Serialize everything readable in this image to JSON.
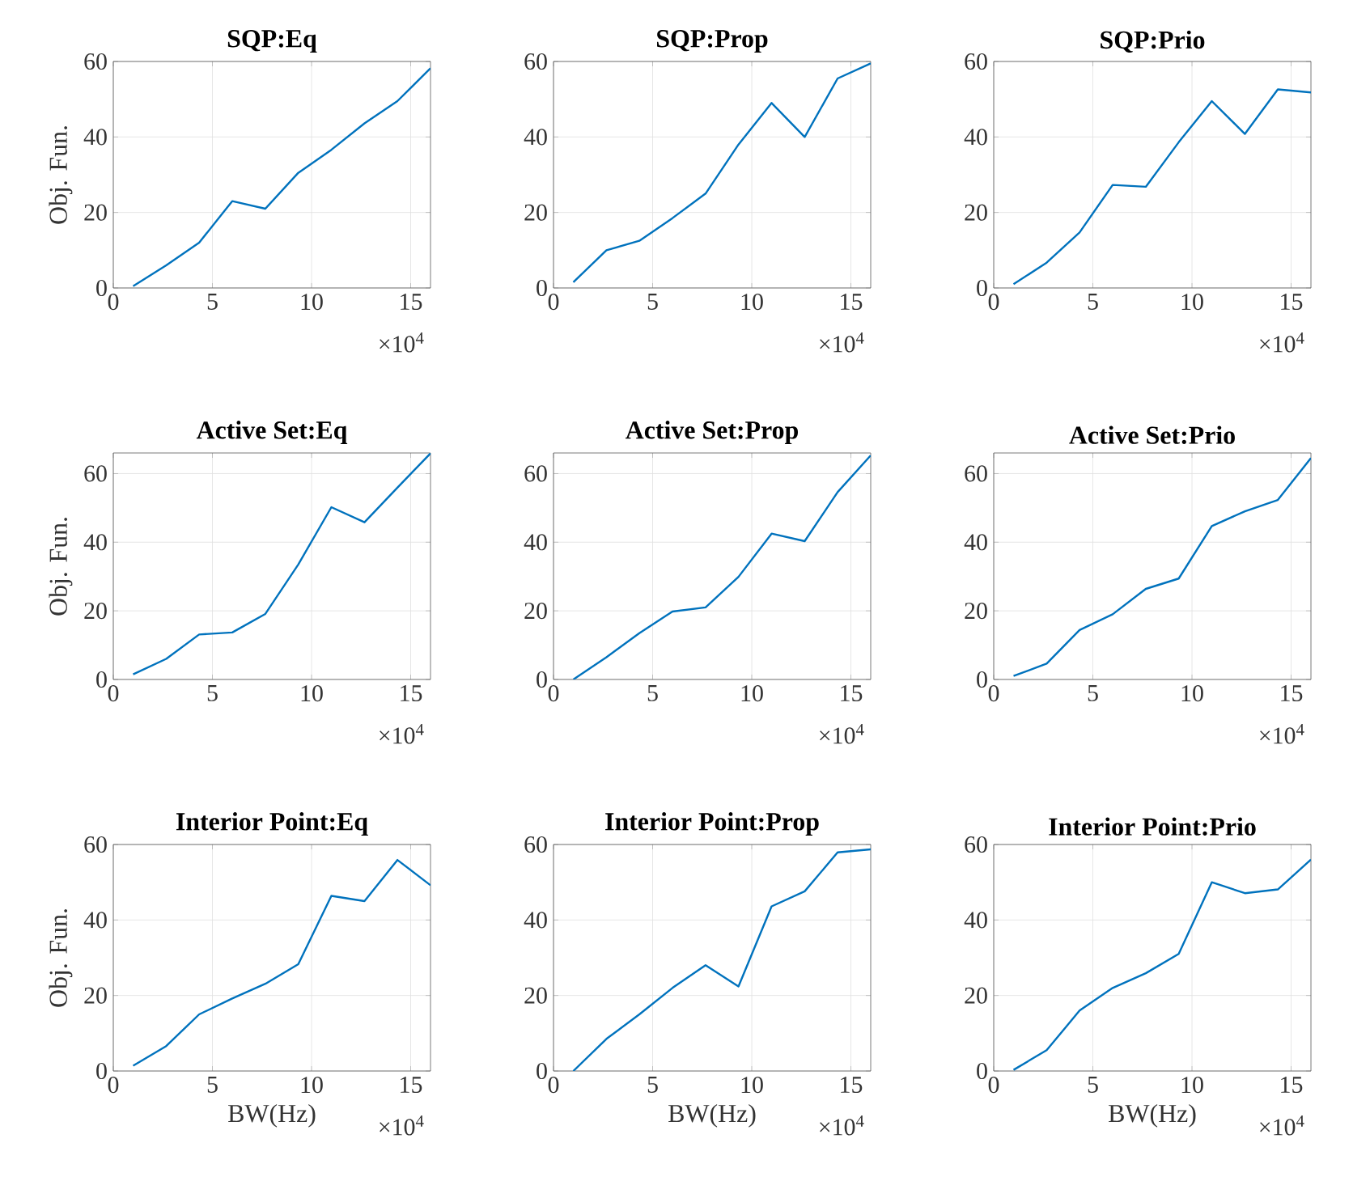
{
  "chart_data": [
    {
      "type": "line",
      "title": "SQP:Eq",
      "ylabel": "Obj. Fun.",
      "x": [
        1,
        2.67,
        4.33,
        6,
        7.67,
        9.33,
        11,
        12.67,
        14.33,
        16
      ],
      "series": [
        {
          "color": "#0072bd",
          "values": [
            0.5,
            6,
            12,
            23,
            21,
            30.5,
            36.6,
            43.6,
            49.5,
            58.2
          ]
        }
      ],
      "xlim": [
        0,
        16
      ],
      "ylim": [
        0,
        60
      ],
      "xticks": [
        0,
        5,
        10,
        15
      ],
      "yticks": [
        0,
        20,
        40,
        60
      ],
      "grid": true,
      "annotations": [
        "×10$^{4}$"
      ]
    },
    {
      "type": "line",
      "title": "SQP:Prop",
      "x": [
        1,
        2.67,
        4.33,
        6,
        7.67,
        9.33,
        11,
        12.67,
        14.33,
        16
      ],
      "series": [
        {
          "color": "#0072bd",
          "values": [
            1.5,
            10,
            12.5,
            18.5,
            25,
            38,
            49,
            40,
            55.5,
            59.5
          ]
        }
      ],
      "xlim": [
        0,
        16
      ],
      "ylim": [
        0,
        60
      ],
      "xticks": [
        0,
        5,
        10,
        15
      ],
      "yticks": [
        0,
        20,
        40,
        60
      ],
      "grid": true,
      "annotations": [
        "×10$^{4}$"
      ]
    },
    {
      "type": "line",
      "title": "SQP:Prio",
      "x": [
        1,
        2.67,
        4.33,
        6,
        7.67,
        9.33,
        11,
        12.67,
        14.33,
        16
      ],
      "series": [
        {
          "color": "#0072bd",
          "values": [
            1,
            6.7,
            14.7,
            27.3,
            26.8,
            38.6,
            49.5,
            40.8,
            52.6,
            51.8
          ]
        }
      ],
      "xlim": [
        0,
        16
      ],
      "ylim": [
        0,
        60
      ],
      "xticks": [
        0,
        5,
        10,
        15
      ],
      "yticks": [
        0,
        20,
        40,
        60
      ],
      "grid": true,
      "annotations": [
        "×10$^{4}$"
      ]
    },
    {
      "type": "line",
      "title": "Active Set:Eq",
      "ylabel": "Obj. Fun.",
      "x": [
        1,
        2.67,
        4.33,
        6,
        7.67,
        9.33,
        11,
        12.67,
        14.33,
        16
      ],
      "series": [
        {
          "color": "#0072bd",
          "values": [
            1.5,
            6,
            13.1,
            13.7,
            19.1,
            33.5,
            50.2,
            45.8,
            55.9,
            65.9
          ]
        }
      ],
      "xlim": [
        0,
        16
      ],
      "ylim": [
        0,
        66
      ],
      "xticks": [
        0,
        5,
        10,
        15
      ],
      "yticks": [
        0,
        20,
        40,
        60
      ],
      "grid": true,
      "annotations": [
        "×10$^{4}$"
      ]
    },
    {
      "type": "line",
      "title": "Active Set:Prop",
      "x": [
        1,
        2.67,
        4.33,
        6,
        7.67,
        9.33,
        11,
        12.67,
        14.33,
        16
      ],
      "series": [
        {
          "color": "#0072bd",
          "values": [
            0,
            6.5,
            13.5,
            19.8,
            21,
            29.9,
            42.5,
            40.3,
            54.6,
            65.3
          ]
        }
      ],
      "xlim": [
        0,
        16
      ],
      "ylim": [
        0,
        66
      ],
      "xticks": [
        0,
        5,
        10,
        15
      ],
      "yticks": [
        0,
        20,
        40,
        60
      ],
      "grid": true,
      "annotations": [
        "×10$^{4}$"
      ]
    },
    {
      "type": "line",
      "title": "Active Set:Prio",
      "x": [
        1,
        2.67,
        4.33,
        6,
        7.67,
        9.33,
        11,
        12.67,
        14.33,
        16
      ],
      "series": [
        {
          "color": "#0072bd",
          "values": [
            1,
            4.6,
            14.4,
            19,
            26.4,
            29.4,
            44.7,
            49,
            52.3,
            64.5
          ]
        }
      ],
      "xlim": [
        0,
        16
      ],
      "ylim": [
        0,
        66
      ],
      "xticks": [
        0,
        5,
        10,
        15
      ],
      "yticks": [
        0,
        20,
        40,
        60
      ],
      "grid": true,
      "annotations": [
        "×10$^{4}$"
      ]
    },
    {
      "type": "line",
      "title": "Interior Point:Eq",
      "xlabel": "BW(Hz)",
      "ylabel": "Obj. Fun.",
      "x": [
        1,
        2.67,
        4.33,
        6,
        7.67,
        9.33,
        11,
        12.67,
        14.33,
        16
      ],
      "series": [
        {
          "color": "#0072bd",
          "values": [
            1.4,
            6.6,
            15,
            19.2,
            23.1,
            28.3,
            46.4,
            45,
            55.9,
            49.2
          ]
        }
      ],
      "xlim": [
        0,
        16
      ],
      "ylim": [
        0,
        60
      ],
      "xticks": [
        0,
        5,
        10,
        15
      ],
      "yticks": [
        0,
        20,
        40,
        60
      ],
      "grid": true,
      "annotations": [
        "×10$^{4}$"
      ]
    },
    {
      "type": "line",
      "title": "Interior Point:Prop",
      "xlabel": "BW(Hz)",
      "x": [
        1,
        2.67,
        4.33,
        6,
        7.67,
        9.33,
        11,
        12.67,
        14.33,
        16
      ],
      "series": [
        {
          "color": "#0072bd",
          "values": [
            0,
            8.5,
            15,
            22,
            28,
            22.4,
            43.6,
            47.6,
            57.9,
            58.7
          ]
        }
      ],
      "xlim": [
        0,
        16
      ],
      "ylim": [
        0,
        60
      ],
      "xticks": [
        0,
        5,
        10,
        15
      ],
      "yticks": [
        0,
        20,
        40,
        60
      ],
      "grid": true,
      "annotations": [
        "×10$^{4}$"
      ]
    },
    {
      "type": "line",
      "title": "Interior Point:Prio",
      "xlabel": "BW(Hz)",
      "x": [
        1,
        2.67,
        4.33,
        6,
        7.67,
        9.33,
        11,
        12.67,
        14.33,
        16
      ],
      "series": [
        {
          "color": "#0072bd",
          "values": [
            0.3,
            5.5,
            16,
            22,
            25.9,
            31,
            50,
            47.1,
            48.1,
            56
          ]
        }
      ],
      "xlim": [
        0,
        16
      ],
      "ylim": [
        0,
        60
      ],
      "xticks": [
        0,
        5,
        10,
        15
      ],
      "yticks": [
        0,
        20,
        40,
        60
      ],
      "grid": true,
      "annotations": [
        "×10$^{4}$"
      ]
    }
  ]
}
